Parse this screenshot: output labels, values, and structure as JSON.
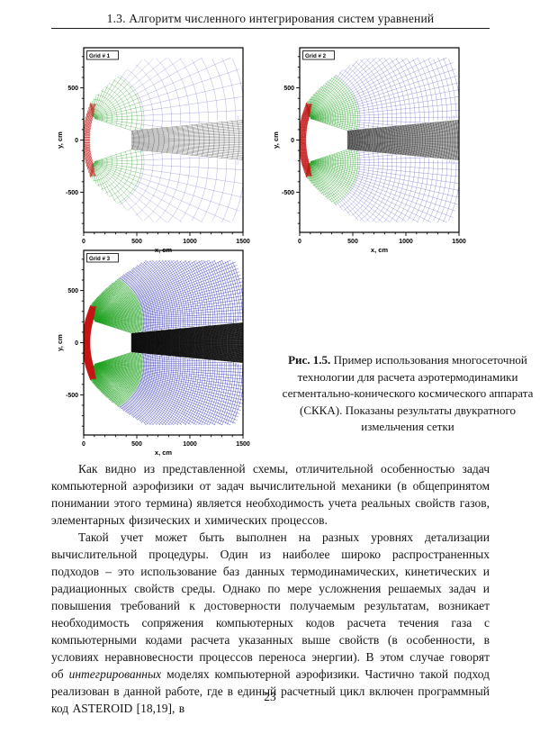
{
  "page": {
    "header_title": "1.3. Алгоритм численного интегрирования систем уравнений",
    "page_number": "23"
  },
  "figure": {
    "caption_label": "Рис. 1.5.",
    "caption_text": " Пример использования многосеточной технологии для расчета аэротермодинамики сегментально-конического космического аппарата (СККА). Показаны результаты двукратного измельчения сетки"
  },
  "paragraphs": [
    [
      {
        "t": "Как видно из представленной схемы, отличительной особенностью задач компьютерной аэрофизики от задач вычислительной механики (в общепринятом понимании этого термина) является необходимость учета реальных свойств газов, элементарных физических и химических процессов."
      }
    ],
    [
      {
        "t": "Такой учет может быть выполнен на разных уровнях детализации вычислительной процедуры. Один из наиболее широко распространенных подходов – это использование баз данных термодинамических, кинетических и радиационных свойств среды. Однако по мере усложнения решаемых задач и повышения требований к достоверности получаемым результатам, возникает необходимость сопряжения компьютерных кодов расчета течения газа с компьютерными кодами расчета указанных выше свойств (в особенности, в условиях неравновесности процессов переноса энергии). В этом случае говорят об "
      },
      {
        "t": "интегрированных",
        "i": true
      },
      {
        "t": " моделях компьютерной аэрофизики. Частично такой подход реализован в данной работе, где в единый расчетный цикл включен программный код ASTEROID [18,19], в"
      }
    ]
  ],
  "chart_data": [
    {
      "type": "mesh-grid",
      "title": "Grid # 1",
      "xlabel": "x, cm",
      "ylabel": "y, cm",
      "xlim": [
        0,
        1500
      ],
      "ylim": [
        -885,
        885
      ],
      "x_ticks": [
        0,
        500,
        1000,
        1500
      ],
      "y_ticks": [
        -500,
        0,
        500
      ],
      "x_minor_step": 100,
      "y_minor_step": 100,
      "refinement": 1,
      "zones": [
        {
          "name": "bow-shock-layer",
          "color": "#c41414"
        },
        {
          "name": "shoulder-expansion-fan",
          "color": "#23a123"
        },
        {
          "name": "outer-flowfield",
          "color": "#5050c0"
        },
        {
          "name": "near-wake",
          "color": "#1c1c1c"
        }
      ]
    },
    {
      "type": "mesh-grid",
      "title": "Grid # 2",
      "xlabel": "x, cm",
      "ylabel": "y, cm",
      "xlim": [
        0,
        1500
      ],
      "ylim": [
        -885,
        885
      ],
      "x_ticks": [
        0,
        500,
        1000,
        1500
      ],
      "y_ticks": [
        -500,
        0,
        500
      ],
      "x_minor_step": 100,
      "y_minor_step": 100,
      "refinement": 2,
      "zones": [
        {
          "name": "bow-shock-layer",
          "color": "#c41414"
        },
        {
          "name": "shoulder-expansion-fan",
          "color": "#23a123"
        },
        {
          "name": "outer-flowfield",
          "color": "#4a4ac0"
        },
        {
          "name": "near-wake",
          "color": "#161616"
        }
      ]
    },
    {
      "type": "mesh-grid",
      "title": "Grid # 3",
      "xlabel": "x, cm",
      "ylabel": "y, cm",
      "xlim": [
        0,
        1500
      ],
      "ylim": [
        -885,
        885
      ],
      "x_ticks": [
        0,
        500,
        1000,
        1500
      ],
      "y_ticks": [
        -500,
        0,
        500
      ],
      "x_minor_step": 100,
      "y_minor_step": 100,
      "refinement": 4,
      "zones": [
        {
          "name": "bow-shock-layer",
          "color": "#c41414"
        },
        {
          "name": "shoulder-expansion-fan",
          "color": "#1fa11f"
        },
        {
          "name": "outer-flowfield",
          "color": "#3c3cbb"
        },
        {
          "name": "near-wake",
          "color": "#0d0d0d"
        }
      ]
    }
  ]
}
